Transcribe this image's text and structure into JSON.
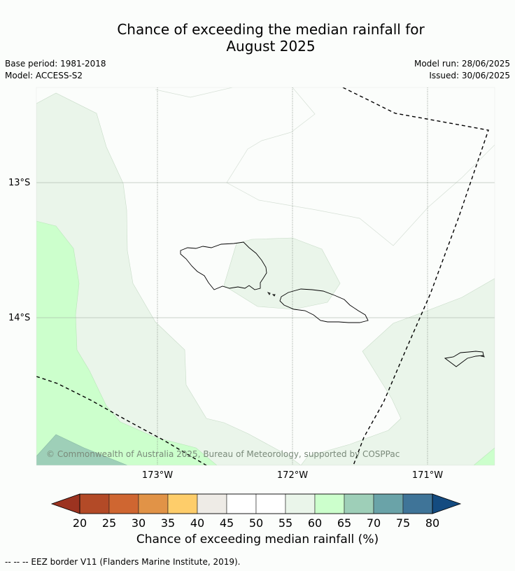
{
  "header": {
    "title_line1": "Chance of exceeding the median rainfall for",
    "title_line2": "August 2025",
    "base_period": "Base period: 1981-2018",
    "model": "Model: ACCESS-S2",
    "model_run": "Model run: 28/06/2025",
    "issued": "Issued: 30/06/2025"
  },
  "map": {
    "lat_labels": [
      "13°S",
      "14°S"
    ],
    "lon_labels": [
      "173°W",
      "172°W",
      "171°W"
    ],
    "copyright": "© Commonwealth of Australia 2025, Bureau of Meteorology, supported by COSPPac",
    "colors": {
      "band_55_60": "#eaf5ea",
      "band_60_65": "#ccffcc",
      "band_65_70": "#9ecfb8",
      "background": "#fbfdfb"
    }
  },
  "colorbar": {
    "ticks": [
      "20",
      "25",
      "30",
      "35",
      "40",
      "45",
      "50",
      "55",
      "60",
      "65",
      "70",
      "75",
      "80"
    ],
    "colors": [
      "#b34a27",
      "#cf6631",
      "#e19347",
      "#fecd6a",
      "#eeebe6",
      "#ffffff",
      "#ffffff",
      "#eaf5ea",
      "#ccffcc",
      "#9ecfb8",
      "#6aa3a8",
      "#3f7498"
    ],
    "low_extend_color": "#9c3320",
    "high_extend_color": "#144b80",
    "title": "Chance of exceeding median rainfall (%)"
  },
  "footer": {
    "legend": "--  --  -- EEZ border V11 (Flanders Marine Institute, 2019)."
  }
}
